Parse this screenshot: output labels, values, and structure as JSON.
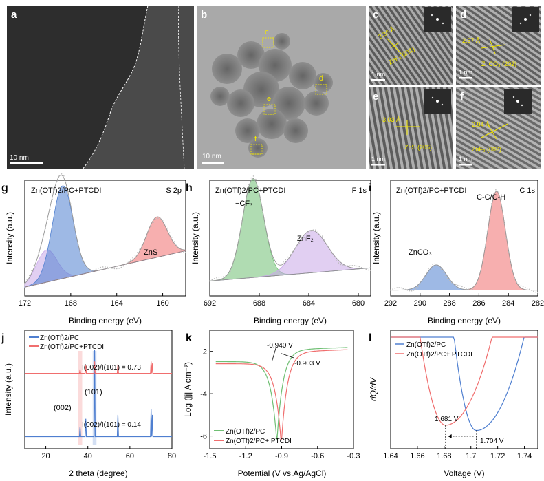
{
  "figure": {
    "colors": {
      "blue": "#4f7fd0",
      "red": "#f06e6e",
      "green": "#6fbf73",
      "purple": "#c9a8e8",
      "yellow": "#f2e600"
    },
    "panels": {
      "a": {
        "letter": "a",
        "scale": "10 nm"
      },
      "b": {
        "letter": "b",
        "scale": "10 nm",
        "box_labels": [
          "c",
          "d",
          "e",
          "f"
        ]
      },
      "c": {
        "letter": "c",
        "scale": "1 nm",
        "spacing": "2.36 Å",
        "phase": "ZnF₂ (211)"
      },
      "d": {
        "letter": "d",
        "scale": "1 nm",
        "spacing": "2.57 Å",
        "phase": "ZnCO₃ (202)"
      },
      "e": {
        "letter": "e",
        "scale": "1 nm",
        "spacing": "3.03 Å",
        "phase": "ZnS (205)"
      },
      "f": {
        "letter": "f",
        "scale": "1 nm",
        "spacing": "2.94 Å",
        "phase": "ZnF₂ (002)"
      }
    }
  },
  "chart_data": [
    {
      "id": "g",
      "type": "line",
      "title": "Zn(OTf)2/PC+PTCDI",
      "subtitle": "S 2p",
      "xlabel": "Binding energy (eV)",
      "ylabel": "Intensity (a.u.)",
      "xlim": [
        172,
        158
      ],
      "xticks": [
        172,
        168,
        164,
        160
      ],
      "peaks": [
        {
          "center": 170.1,
          "height": 0.32,
          "sigma": 0.9,
          "fill": "purple"
        },
        {
          "center": 168.7,
          "height": 0.92,
          "sigma": 0.9,
          "fill": "blue"
        },
        {
          "center": 160.5,
          "height": 0.4,
          "sigma": 0.9,
          "fill": "red",
          "label": "ZnS"
        }
      ],
      "background": [
        0.06,
        0.42
      ]
    },
    {
      "id": "h",
      "type": "line",
      "title": "Zn(OTf)2/PC+PTCDI",
      "subtitle": "F 1s",
      "xlabel": "Binding energy (eV)",
      "ylabel": "Intensity (a.u.)",
      "xlim": [
        692,
        679
      ],
      "xticks": [
        692,
        688,
        684,
        680
      ],
      "peaks": [
        {
          "center": 688.5,
          "height": 0.98,
          "sigma": 0.85,
          "fill": "green",
          "label": "−CF₃"
        },
        {
          "center": 683.8,
          "height": 0.42,
          "sigma": 1.3,
          "fill": "purple",
          "label": "ZnF₂"
        }
      ],
      "background": [
        0.12,
        0.25
      ]
    },
    {
      "id": "i",
      "type": "line",
      "title": "Zn(OTf)2/PC+PTCDI",
      "subtitle": "C 1s",
      "xlabel": "Binding energy (eV)",
      "ylabel": "Intensity (a.u.)",
      "xlim": [
        292,
        282
      ],
      "xticks": [
        292,
        290,
        288,
        286,
        284,
        282
      ],
      "peaks": [
        {
          "center": 288.9,
          "height": 0.25,
          "sigma": 0.7,
          "fill": "blue",
          "label": "ZnCO₃"
        },
        {
          "center": 284.8,
          "height": 0.98,
          "sigma": 0.6,
          "fill": "red",
          "label": "C-C/C-H"
        }
      ],
      "background": [
        0.03,
        0.03
      ]
    },
    {
      "id": "j",
      "type": "line",
      "xlabel": "2 theta (degree)",
      "ylabel": "Intensity (a.u.)",
      "xlim": [
        10,
        80
      ],
      "xticks": [
        20,
        40,
        60,
        80
      ],
      "series": [
        {
          "name": "Zn(OTf)2/PC",
          "color": "blue",
          "baseline": 0.08,
          "peaks": [
            [
              36.3,
              0.1
            ],
            [
              39.0,
              0.18
            ],
            [
              43.2,
              0.88
            ],
            [
              54.3,
              0.22
            ],
            [
              70.1,
              0.28
            ],
            [
              70.7,
              0.22
            ]
          ]
        },
        {
          "name": "Zn(OTf)2/PC+PTCDI",
          "color": "red",
          "baseline": 0.72,
          "peaks": [
            [
              36.3,
              0.04
            ],
            [
              39.0,
              0.08
            ],
            [
              43.2,
              0.12
            ],
            [
              54.3,
              0.09
            ],
            [
              70.1,
              0.12
            ],
            [
              70.7,
              0.1
            ]
          ]
        }
      ],
      "annotations": {
        "ratio_top": "I(002)/I(101) = 0.73",
        "ratio_bottom": "I(002)/I(101) = 0.14",
        "p002": "(002)",
        "p101": "(101)"
      }
    },
    {
      "id": "k",
      "type": "line",
      "xlabel": "Potential (V vs.Ag/AgCl)",
      "ylabel": "Log (|j| A cm⁻²)",
      "xlim": [
        -1.5,
        -0.3
      ],
      "ylim": [
        -6.6,
        -1.0
      ],
      "xticks": [
        -1.5,
        -1.2,
        -0.9,
        -0.6,
        -0.3
      ],
      "yticks": [
        -2,
        -4,
        -6
      ],
      "series": [
        {
          "name": "Zn(OTf)2/PC",
          "color": "green",
          "ecorr": -0.94
        },
        {
          "name": "Zn(OTf)2/PC+ PTCDI",
          "color": "red",
          "ecorr": -0.903
        }
      ],
      "annotations": {
        "e1": "-0.940 V",
        "e2": "-0.903 V"
      }
    },
    {
      "id": "l",
      "type": "line",
      "xlabel": "Voltage (V)",
      "ylabel": "dQ/dV",
      "xlim": [
        1.64,
        1.75
      ],
      "xticks": [
        1.64,
        1.66,
        1.68,
        1.7,
        1.72,
        1.74
      ],
      "series": [
        {
          "name": "Zn(OTf)2/PC",
          "color": "blue",
          "min_x": 1.704
        },
        {
          "name": "Zn(OTf)2/PC+ PTCDI",
          "color": "red",
          "min_x": 1.681
        }
      ],
      "annotations": {
        "v1": "1.681 V",
        "v2": "1.704 V"
      }
    }
  ]
}
